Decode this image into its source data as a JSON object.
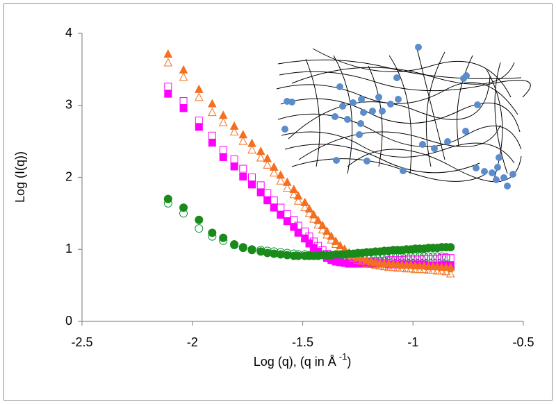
{
  "chart_data": {
    "type": "scatter",
    "y_label": "Log (I(q))",
    "x_label": "Log (q), (q in Å",
    "x_label_sup": "-1",
    "x_label_end": ")",
    "xlim": [
      -2.5,
      -0.5
    ],
    "xticks": [
      -2.5,
      -2,
      -1.5,
      -1,
      -0.5
    ],
    "ylim": [
      0,
      4
    ],
    "yticks": [
      0,
      1,
      2,
      3,
      4
    ],
    "x": [
      -2.11,
      -2.04,
      -1.97,
      -1.91,
      -1.86,
      -1.81,
      -1.77,
      -1.73,
      -1.69,
      -1.66,
      -1.63,
      -1.6,
      -1.57,
      -1.54,
      -1.52,
      -1.49,
      -1.47,
      -1.45,
      -1.43,
      -1.41,
      -1.39,
      -1.37,
      -1.35,
      -1.33,
      -1.31,
      -1.29,
      -1.27,
      -1.25,
      -1.23,
      -1.21,
      -1.19,
      -1.17,
      -1.15,
      -1.13,
      -1.11,
      -1.09,
      -1.07,
      -1.05,
      -1.03,
      -1.01,
      -0.99,
      -0.97,
      -0.95,
      -0.93,
      -0.91,
      -0.89,
      -0.87,
      -0.85,
      -0.83
    ],
    "series": [
      {
        "color": "#00962a",
        "marker": "circle",
        "filled": false,
        "values": [
          1.64,
          1.5,
          1.29,
          1.18,
          1.12,
          1.06,
          1.03,
          1.0,
          0.99,
          0.98,
          0.97,
          0.96,
          0.95,
          0.94,
          0.93,
          0.93,
          0.92,
          0.92,
          0.92,
          0.92,
          0.91,
          0.91,
          0.91,
          0.91,
          0.91,
          0.91,
          0.91,
          0.91,
          0.91,
          0.91,
          0.91,
          0.91,
          0.91,
          0.91,
          0.91,
          0.9,
          0.9,
          0.9,
          0.9,
          0.9,
          0.9,
          0.9,
          0.9,
          0.9,
          0.9,
          0.9,
          0.9,
          0.89,
          0.74
        ]
      },
      {
        "color": "#ff00ff",
        "marker": "square",
        "filled": false,
        "values": [
          3.26,
          3.06,
          2.79,
          2.58,
          2.38,
          2.25,
          2.12,
          2.0,
          1.89,
          1.78,
          1.68,
          1.58,
          1.49,
          1.41,
          1.33,
          1.25,
          1.18,
          1.11,
          1.05,
          0.99,
          0.94,
          0.9,
          0.87,
          0.85,
          0.84,
          0.83,
          0.83,
          0.83,
          0.83,
          0.83,
          0.83,
          0.84,
          0.84,
          0.84,
          0.85,
          0.85,
          0.85,
          0.85,
          0.86,
          0.86,
          0.86,
          0.86,
          0.87,
          0.87,
          0.87,
          0.87,
          0.88,
          0.88,
          0.88
        ]
      },
      {
        "color": "#ff00ff",
        "marker": "square",
        "filled": true,
        "values": [
          3.16,
          2.96,
          2.7,
          2.48,
          2.28,
          2.15,
          2.01,
          1.9,
          1.79,
          1.68,
          1.58,
          1.48,
          1.39,
          1.31,
          1.23,
          1.15,
          1.08,
          1.02,
          0.97,
          0.92,
          0.88,
          0.85,
          0.83,
          0.82,
          0.81,
          0.8,
          0.8,
          0.8,
          0.8,
          0.8,
          0.8,
          0.8,
          0.8,
          0.8,
          0.79,
          0.79,
          0.79,
          0.79,
          0.79,
          0.79,
          0.79,
          0.79,
          0.79,
          0.78,
          0.78,
          0.78,
          0.78,
          0.78,
          0.78
        ]
      },
      {
        "color": "#f37021",
        "marker": "triangle",
        "filled": false,
        "values": [
          3.59,
          3.39,
          3.11,
          2.9,
          2.76,
          2.63,
          2.5,
          2.38,
          2.27,
          2.17,
          2.06,
          1.95,
          1.85,
          1.76,
          1.67,
          1.58,
          1.5,
          1.42,
          1.34,
          1.27,
          1.2,
          1.13,
          1.07,
          1.01,
          0.96,
          0.92,
          0.88,
          0.85,
          0.83,
          0.81,
          0.79,
          0.78,
          0.77,
          0.76,
          0.75,
          0.75,
          0.74,
          0.74,
          0.73,
          0.73,
          0.72,
          0.72,
          0.72,
          0.71,
          0.71,
          0.7,
          0.7,
          0.69,
          0.66
        ]
      },
      {
        "color": "#f37021",
        "marker": "triangle",
        "filled": true,
        "values": [
          3.71,
          3.49,
          3.22,
          3.02,
          2.86,
          2.71,
          2.59,
          2.47,
          2.36,
          2.26,
          2.14,
          2.03,
          1.93,
          1.83,
          1.74,
          1.65,
          1.56,
          1.48,
          1.4,
          1.33,
          1.25,
          1.18,
          1.11,
          1.05,
          1.0,
          0.95,
          0.92,
          0.89,
          0.87,
          0.85,
          0.83,
          0.82,
          0.81,
          0.8,
          0.8,
          0.79,
          0.79,
          0.78,
          0.78,
          0.78,
          0.77,
          0.77,
          0.77,
          0.76,
          0.76,
          0.76,
          0.75,
          0.75,
          0.75
        ]
      },
      {
        "color": "#1a8a1a",
        "marker": "circle",
        "filled": true,
        "values": [
          1.7,
          1.58,
          1.41,
          1.23,
          1.16,
          1.07,
          1.02,
          0.99,
          0.97,
          0.95,
          0.94,
          0.93,
          0.92,
          0.91,
          0.91,
          0.91,
          0.91,
          0.91,
          0.91,
          0.92,
          0.92,
          0.92,
          0.93,
          0.93,
          0.93,
          0.94,
          0.94,
          0.95,
          0.95,
          0.96,
          0.96,
          0.97,
          0.97,
          0.98,
          0.98,
          0.99,
          0.99,
          0.99,
          1.0,
          1.0,
          1.01,
          1.01,
          1.01,
          1.02,
          1.02,
          1.02,
          1.03,
          1.03,
          1.03
        ]
      }
    ]
  }
}
